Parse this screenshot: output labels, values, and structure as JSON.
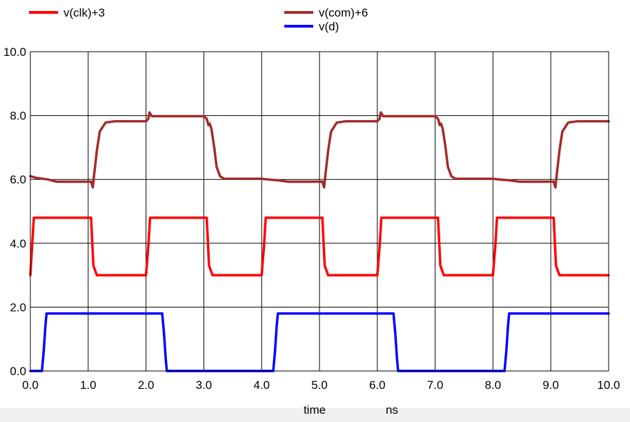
{
  "chart_data": {
    "type": "line",
    "xlabel": "time",
    "xunit": "ns",
    "xlim": [
      0,
      10
    ],
    "ylim": [
      0,
      10
    ],
    "x_ticks": [
      "0.0",
      "1.0",
      "2.0",
      "3.0",
      "4.0",
      "5.0",
      "6.0",
      "7.0",
      "8.0",
      "9.0",
      "10.0"
    ],
    "y_ticks": [
      "0.0",
      "2.0",
      "4.0",
      "6.0",
      "8.0",
      "10.0"
    ],
    "grid": true,
    "legend_position": "top",
    "series": [
      {
        "name": "v(clk)+3",
        "color": "#ff0000",
        "points": [
          [
            0.0,
            3.0
          ],
          [
            0.03,
            3.9
          ],
          [
            0.06,
            4.8
          ],
          [
            1.05,
            4.8
          ],
          [
            1.09,
            3.3
          ],
          [
            1.15,
            3.0
          ],
          [
            2.0,
            3.0
          ],
          [
            2.04,
            3.9
          ],
          [
            2.07,
            4.8
          ],
          [
            3.05,
            4.8
          ],
          [
            3.09,
            3.3
          ],
          [
            3.15,
            3.0
          ],
          [
            4.0,
            3.0
          ],
          [
            4.04,
            3.9
          ],
          [
            4.07,
            4.8
          ],
          [
            5.05,
            4.8
          ],
          [
            5.09,
            3.3
          ],
          [
            5.15,
            3.0
          ],
          [
            6.0,
            3.0
          ],
          [
            6.04,
            3.9
          ],
          [
            6.07,
            4.8
          ],
          [
            7.05,
            4.8
          ],
          [
            7.09,
            3.3
          ],
          [
            7.15,
            3.0
          ],
          [
            8.0,
            3.0
          ],
          [
            8.04,
            3.9
          ],
          [
            8.07,
            4.8
          ],
          [
            9.05,
            4.8
          ],
          [
            9.09,
            3.3
          ],
          [
            9.15,
            3.0
          ],
          [
            10.0,
            3.0
          ]
        ]
      },
      {
        "name": "v(com)+6",
        "color": "#a52a2a",
        "points": [
          [
            0.0,
            6.1
          ],
          [
            0.1,
            6.05
          ],
          [
            0.3,
            6.0
          ],
          [
            0.45,
            5.93
          ],
          [
            1.05,
            5.93
          ],
          [
            1.08,
            5.75
          ],
          [
            1.1,
            6.1
          ],
          [
            1.15,
            6.9
          ],
          [
            1.2,
            7.5
          ],
          [
            1.3,
            7.78
          ],
          [
            1.45,
            7.82
          ],
          [
            2.0,
            7.82
          ],
          [
            2.04,
            7.9
          ],
          [
            2.06,
            8.1
          ],
          [
            2.1,
            7.98
          ],
          [
            3.0,
            7.98
          ],
          [
            3.05,
            7.9
          ],
          [
            3.08,
            7.7
          ],
          [
            3.1,
            7.75
          ],
          [
            3.13,
            7.6
          ],
          [
            3.18,
            7.0
          ],
          [
            3.22,
            6.4
          ],
          [
            3.28,
            6.1
          ],
          [
            3.35,
            6.02
          ],
          [
            4.0,
            6.02
          ],
          [
            4.1,
            6.0
          ],
          [
            4.3,
            5.97
          ],
          [
            4.45,
            5.93
          ],
          [
            5.05,
            5.93
          ],
          [
            5.08,
            5.75
          ],
          [
            5.1,
            6.1
          ],
          [
            5.15,
            6.9
          ],
          [
            5.2,
            7.5
          ],
          [
            5.3,
            7.78
          ],
          [
            5.45,
            7.82
          ],
          [
            6.0,
            7.82
          ],
          [
            6.04,
            7.9
          ],
          [
            6.06,
            8.1
          ],
          [
            6.1,
            7.98
          ],
          [
            7.0,
            7.98
          ],
          [
            7.05,
            7.9
          ],
          [
            7.08,
            7.7
          ],
          [
            7.1,
            7.75
          ],
          [
            7.13,
            7.6
          ],
          [
            7.18,
            7.0
          ],
          [
            7.22,
            6.4
          ],
          [
            7.28,
            6.1
          ],
          [
            7.35,
            6.02
          ],
          [
            8.0,
            6.02
          ],
          [
            8.1,
            6.0
          ],
          [
            8.3,
            5.97
          ],
          [
            8.45,
            5.93
          ],
          [
            9.05,
            5.93
          ],
          [
            9.08,
            5.75
          ],
          [
            9.1,
            6.1
          ],
          [
            9.15,
            6.9
          ],
          [
            9.2,
            7.5
          ],
          [
            9.3,
            7.78
          ],
          [
            9.45,
            7.82
          ],
          [
            10.0,
            7.82
          ]
        ]
      },
      {
        "name": "v(d)",
        "color": "#0000ff",
        "points": [
          [
            0.0,
            0.0
          ],
          [
            0.2,
            0.0
          ],
          [
            0.23,
            0.6
          ],
          [
            0.26,
            1.4
          ],
          [
            0.28,
            1.8
          ],
          [
            2.28,
            1.8
          ],
          [
            2.31,
            1.2
          ],
          [
            2.34,
            0.4
          ],
          [
            2.36,
            0.0
          ],
          [
            4.2,
            0.0
          ],
          [
            4.23,
            0.6
          ],
          [
            4.26,
            1.4
          ],
          [
            4.28,
            1.8
          ],
          [
            6.28,
            1.8
          ],
          [
            6.31,
            1.2
          ],
          [
            6.34,
            0.4
          ],
          [
            6.36,
            0.0
          ],
          [
            8.2,
            0.0
          ],
          [
            8.23,
            0.6
          ],
          [
            8.26,
            1.4
          ],
          [
            8.28,
            1.8
          ],
          [
            10.0,
            1.8
          ]
        ]
      }
    ]
  }
}
